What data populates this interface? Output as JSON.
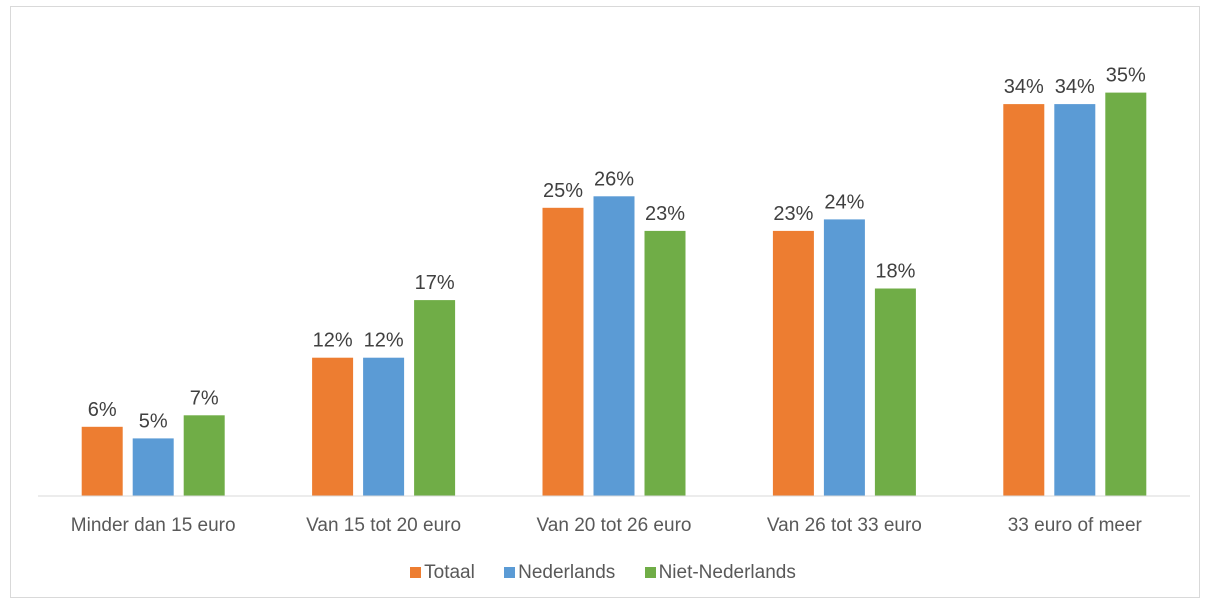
{
  "chart_data": {
    "type": "bar",
    "categories": [
      "Minder dan 15 euro",
      "Van 15 tot 20 euro",
      "Van 20 tot 26 euro",
      "Van 26 tot 33 euro",
      "33 euro of meer"
    ],
    "series": [
      {
        "name": "Totaal",
        "color": "#ed7d31",
        "values": [
          6,
          12,
          25,
          23,
          34
        ],
        "labels": [
          "6%",
          "12%",
          "25%",
          "23%",
          "34%"
        ]
      },
      {
        "name": "Nederlands",
        "color": "#5b9bd5",
        "values": [
          5,
          12,
          26,
          24,
          34
        ],
        "labels": [
          "5%",
          "12%",
          "26%",
          "24%",
          "34%"
        ]
      },
      {
        "name": "Niet-Nederlands",
        "color": "#70ad47",
        "values": [
          7,
          17,
          23,
          18,
          35
        ],
        "labels": [
          "7%",
          "17%",
          "23%",
          "18%",
          "35%"
        ]
      }
    ],
    "ylim": [
      0,
      40
    ],
    "grid": false,
    "legend_position": "bottom",
    "data_labels": true
  }
}
